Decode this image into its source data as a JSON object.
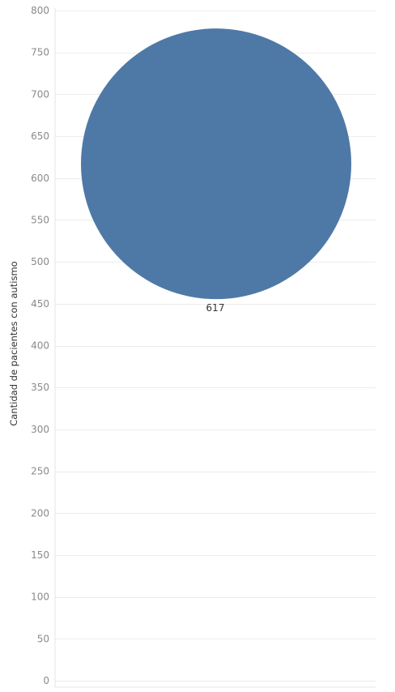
{
  "chart_data": {
    "type": "scatter",
    "ylabel": "Cantidad de pacientes con autismo",
    "xlabel": "",
    "ylim": [
      0,
      800
    ],
    "yticks": [
      0,
      50,
      100,
      150,
      200,
      250,
      300,
      350,
      400,
      450,
      500,
      550,
      600,
      650,
      700,
      750,
      800
    ],
    "grid": true,
    "points": [
      {
        "y": 617,
        "label": "617",
        "color": "#4e79a7"
      }
    ]
  }
}
